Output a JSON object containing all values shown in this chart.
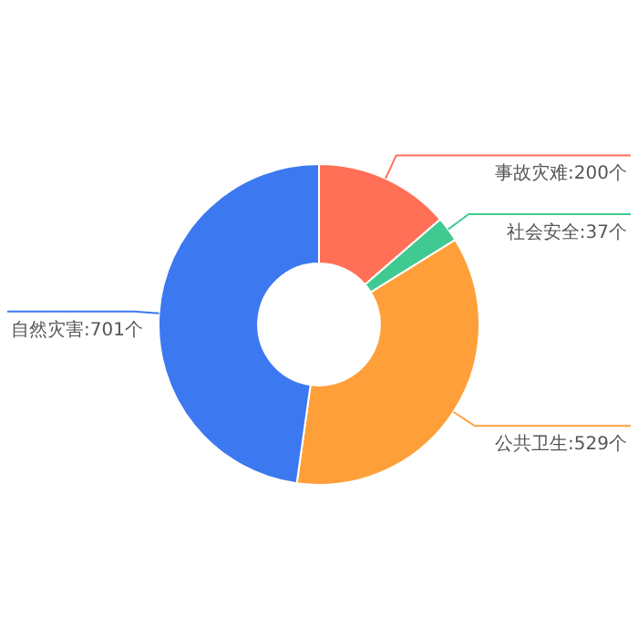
{
  "chart_data": {
    "type": "donut",
    "categories": [
      "事故灾难",
      "社会安全",
      "公共卫生",
      "自然灾害"
    ],
    "values": [
      200,
      37,
      529,
      701
    ],
    "value_labels": [
      "200个",
      "37个",
      "529个",
      "701个"
    ],
    "colors": [
      "#ff7057",
      "#40c990",
      "#ff9f3a",
      "#3c78f0"
    ],
    "legend": false
  }
}
